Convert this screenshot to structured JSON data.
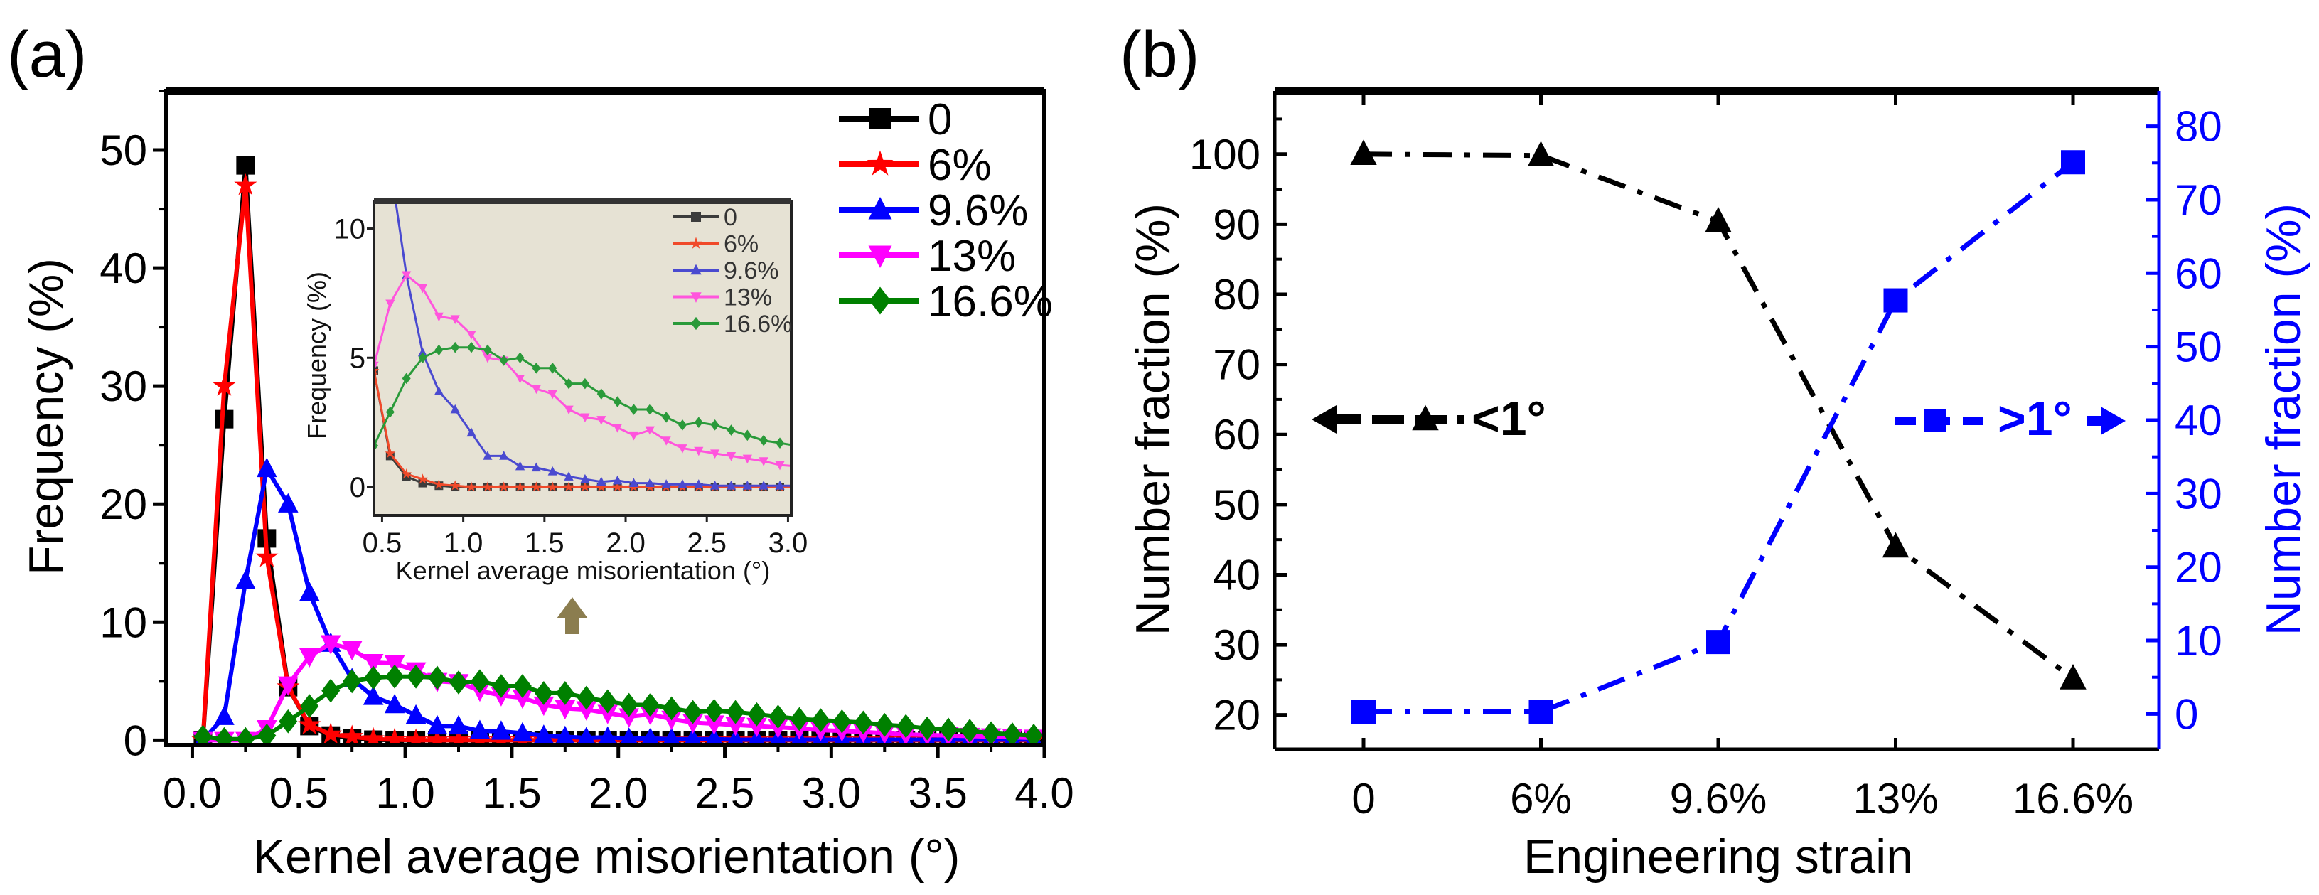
{
  "chart_data": [
    {
      "panel_label": "(a)",
      "type": "line",
      "title": "",
      "xlabel": "Kernel average misorientation (°)",
      "ylabel": "Frequency (%)",
      "xlim": [
        -0.125,
        4.0
      ],
      "ylim": [
        -0.4,
        55
      ],
      "xticks": [
        "0.0",
        "0.5",
        "1.0",
        "1.5",
        "2.0",
        "2.5",
        "3.0",
        "3.5",
        "4.0"
      ],
      "yticks": [
        "0",
        "10",
        "20",
        "30",
        "40",
        "50"
      ],
      "legend_position": "top-right",
      "x": [
        0.05,
        0.15,
        0.25,
        0.35,
        0.45,
        0.55,
        0.65,
        0.75,
        0.85,
        0.95,
        1.05,
        1.15,
        1.25,
        1.35,
        1.45,
        1.55,
        1.65,
        1.75,
        1.85,
        1.95,
        2.05,
        2.15,
        2.25,
        2.35,
        2.45,
        2.55,
        2.65,
        2.75,
        2.85,
        2.95,
        3.05,
        3.15,
        3.25,
        3.35,
        3.45,
        3.55,
        3.65,
        3.75,
        3.85,
        3.95
      ],
      "series": [
        {
          "name": "0",
          "color": "#000000",
          "inset_color": "#3c3c3c",
          "marker": "square",
          "values": [
            0,
            27.2,
            48.7,
            17.1,
            4.5,
            1.2,
            0.4,
            0.15,
            0.05,
            0,
            0,
            0,
            0,
            0,
            0,
            0,
            0,
            0,
            0,
            0,
            0,
            0,
            0,
            0,
            0,
            0,
            0,
            0,
            0,
            0,
            0,
            0,
            0,
            0,
            0,
            0,
            0,
            0,
            0,
            0
          ]
        },
        {
          "name": "6%",
          "color": "#ff0000",
          "inset_color": "#f04a2a",
          "marker": "star",
          "values": [
            0,
            30,
            47,
            15.5,
            4.5,
            1.3,
            0.5,
            0.3,
            0.1,
            0.05,
            0,
            0,
            0,
            0,
            0,
            0,
            0,
            0,
            0,
            0,
            0,
            0,
            0,
            0,
            0,
            0,
            0,
            0,
            0,
            0,
            0,
            0,
            0,
            0,
            0,
            0,
            0,
            0,
            0,
            0
          ]
        },
        {
          "name": "9.6%",
          "color": "#0000ff",
          "inset_color": "#4a4ad0",
          "marker": "triangle-up",
          "values": [
            0,
            2,
            13.5,
            23,
            20,
            12.5,
            8.2,
            5.2,
            3.7,
            3.0,
            2.1,
            1.2,
            1.2,
            0.8,
            0.75,
            0.6,
            0.4,
            0.3,
            0.2,
            0.25,
            0.15,
            0.15,
            0.1,
            0.1,
            0.1,
            0.05,
            0.05,
            0.05,
            0.05,
            0.05,
            0.05,
            0.05,
            0.05,
            0.05,
            0.05,
            0.05,
            0.05,
            0.05,
            0.05,
            0.05
          ]
        },
        {
          "name": "13%",
          "color": "#ff00ff",
          "inset_color": "#ff55dd",
          "marker": "triangle-down",
          "values": [
            0,
            0,
            0,
            1,
            4.7,
            7.1,
            8.2,
            7.7,
            6.6,
            6.5,
            5.9,
            5.0,
            4.9,
            4.2,
            3.8,
            3.6,
            3.0,
            2.7,
            2.6,
            2.3,
            2.0,
            2.2,
            1.8,
            1.5,
            1.4,
            1.3,
            1.2,
            1.1,
            1.0,
            0.85,
            0.8,
            0.7,
            0.6,
            0.5,
            0.45,
            0.4,
            0.35,
            0.3,
            0.25,
            0.2
          ]
        },
        {
          "name": "16.6%",
          "color": "#008000",
          "inset_color": "#2a9a3a",
          "marker": "diamond",
          "values": [
            0.3,
            0.1,
            0.1,
            0.4,
            1.6,
            2.9,
            4.2,
            5.0,
            5.3,
            5.4,
            5.4,
            5.3,
            4.9,
            5.0,
            4.6,
            4.6,
            4.0,
            4.0,
            3.6,
            3.3,
            3.0,
            3.0,
            2.7,
            2.4,
            2.5,
            2.4,
            2.2,
            2.0,
            1.8,
            1.7,
            1.6,
            1.5,
            1.3,
            1.2,
            1.0,
            0.9,
            0.8,
            0.6,
            0.5,
            0.4
          ]
        }
      ],
      "inset": {
        "xlabel": "Kernel average misorientation (°)",
        "ylabel": "Frequency (%)",
        "xlim": [
          0.45,
          3.02
        ],
        "ylim": [
          -1.1,
          11.06
        ],
        "xticks": [
          "0.5",
          "1.0",
          "1.5",
          "2.0",
          "2.5",
          "3.0"
        ],
        "yticks": [
          "0",
          "5",
          "10"
        ],
        "background": "#e6e2d4",
        "arrow_color": "#8b7d4f"
      }
    },
    {
      "panel_label": "(b)",
      "type": "line",
      "title": "",
      "xlabel": "Engineering strain",
      "ylabel": "Number fraction (%)",
      "ylabel_right": "Number fraction (%)",
      "categories": [
        "0",
        "6%",
        "9.6%",
        "13%",
        "16.6%"
      ],
      "ylim": [
        15.1,
        109
      ],
      "ylim_right": [
        -4.8,
        84.8
      ],
      "yticks": [
        "20",
        "30",
        "40",
        "50",
        "60",
        "70",
        "80",
        "90",
        "100"
      ],
      "yticks_right": [
        "0",
        "10",
        "20",
        "30",
        "40",
        "50",
        "60",
        "70",
        "80"
      ],
      "series": [
        {
          "name": "<1°",
          "axis": "left",
          "color": "#000000",
          "marker": "triangle-up",
          "values": [
            100,
            99.8,
            90.4,
            44.0,
            25.2
          ]
        },
        {
          "name": ">1°",
          "axis": "right",
          "color": "#0000ff",
          "marker": "square",
          "values": [
            0.3,
            0.3,
            9.8,
            56.3,
            75.1
          ]
        }
      ]
    }
  ]
}
